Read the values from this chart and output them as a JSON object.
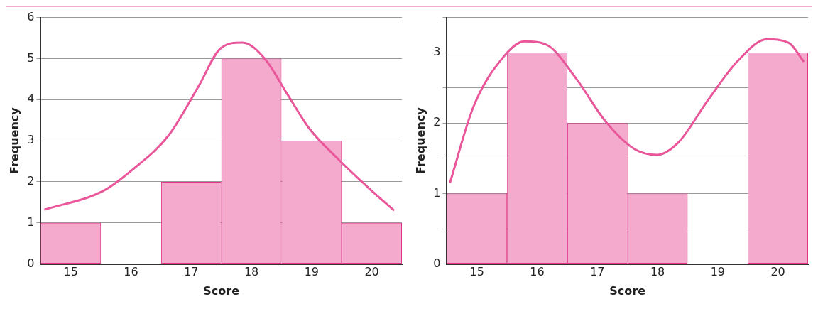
{
  "chart_data": [
    {
      "type": "histogram",
      "xlabel": "Score",
      "ylabel": "Frequency",
      "bins": [
        14.5,
        15.5,
        16.5,
        17.5,
        18.5,
        19.5,
        20.5
      ],
      "values": [
        1,
        0,
        2,
        5,
        3,
        1
      ],
      "color": "#f4aacd",
      "xlim": [
        14.5,
        20.5
      ],
      "xticks": [
        15,
        16,
        17,
        18,
        19,
        20
      ],
      "ylim": [
        0,
        6
      ],
      "yticks": [
        0,
        1,
        2,
        3,
        4,
        5,
        6
      ],
      "grid": "y",
      "marker": "none",
      "series": [
        {
          "type": "line",
          "color": "#e9579a",
          "x": [
            14.56,
            15.54,
            16.02,
            16.63,
            17.12,
            17.49,
            17.85,
            18.22,
            18.59,
            18.96,
            19.45,
            19.94,
            20.37
          ],
          "values": [
            1.32,
            1.78,
            2.29,
            3.14,
            4.32,
            5.25,
            5.39,
            5.0,
            4.15,
            3.3,
            2.54,
            1.86,
            1.3
          ]
        }
      ]
    },
    {
      "type": "histogram",
      "xlabel": "Score",
      "ylabel": "Frequency",
      "bins": [
        14.5,
        15.5,
        16.5,
        17.5,
        18.5,
        19.5,
        20.5
      ],
      "values": [
        1,
        3,
        2,
        1,
        0,
        3
      ],
      "color": "#f4aacd",
      "xlim": [
        14.5,
        20.5
      ],
      "xticks": [
        15,
        16,
        17,
        18,
        19,
        20
      ],
      "ylim": [
        0,
        3.5
      ],
      "yticks": [
        0,
        {
          "value": 0.5,
          "label": null
        },
        1,
        {
          "value": 1.5,
          "label": null
        },
        2,
        {
          "value": 2.5,
          "label": null
        },
        3,
        {
          "value": 3.5,
          "label": null
        }
      ],
      "grid": "y",
      "marker": "none",
      "series": [
        {
          "type": "line",
          "color": "#e9579a",
          "x": [
            14.55,
            14.94,
            15.43,
            15.79,
            16.16,
            16.65,
            17.13,
            17.62,
            17.99,
            18.35,
            18.84,
            19.33,
            19.82,
            20.18,
            20.43
          ],
          "values": [
            1.15,
            2.23,
            2.93,
            3.16,
            3.11,
            2.63,
            2.03,
            1.63,
            1.55,
            1.73,
            2.33,
            2.88,
            3.19,
            3.14,
            2.87
          ]
        }
      ]
    }
  ]
}
